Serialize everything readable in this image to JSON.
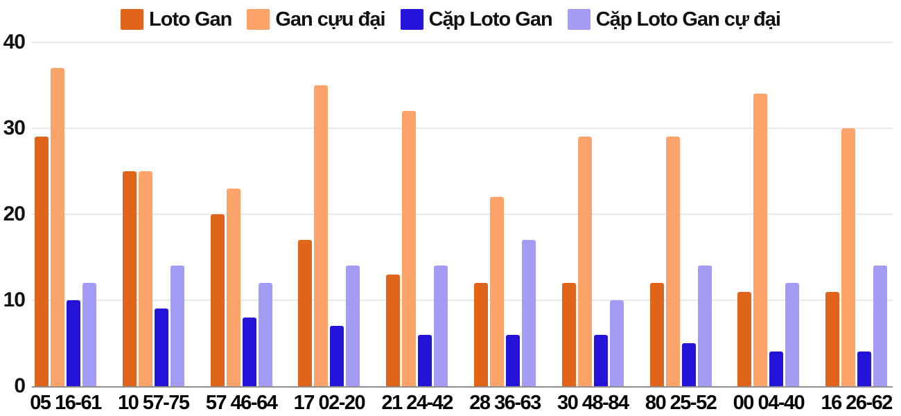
{
  "chart_data": {
    "type": "bar",
    "title": "",
    "xlabel": "",
    "ylabel": "",
    "categories": [
      "05 16-61",
      "10 57-75",
      "57 46-64",
      "17 02-20",
      "21 24-42",
      "28 36-63",
      "30 48-84",
      "80 25-52",
      "00 04-40",
      "16 26-62"
    ],
    "series": [
      {
        "name": "Loto Gan",
        "color": "#E0651A",
        "values": [
          29,
          25,
          20,
          17,
          13,
          12,
          12,
          12,
          11,
          11
        ]
      },
      {
        "name": "Gan cựu đại",
        "color": "#FCA369",
        "values": [
          37,
          25,
          23,
          35,
          32,
          22,
          29,
          29,
          34,
          30
        ]
      },
      {
        "name": "Cặp Loto Gan",
        "color": "#2413D8",
        "values": [
          10,
          9,
          8,
          7,
          6,
          6,
          6,
          5,
          4,
          4
        ]
      },
      {
        "name": "Cặp Loto Gan cự đại",
        "color": "#A49CF4",
        "values": [
          12,
          14,
          12,
          14,
          14,
          17,
          10,
          14,
          12,
          14
        ]
      }
    ],
    "ylim": [
      0,
      40
    ],
    "yticks": [
      0,
      10,
      20,
      30,
      40
    ],
    "grid": true,
    "legend_position": "top",
    "colors": {
      "gridline": "#e8e8e8",
      "baseline": "#8f8f8f",
      "tick_text": "#111111",
      "background": "#ffffff"
    }
  }
}
